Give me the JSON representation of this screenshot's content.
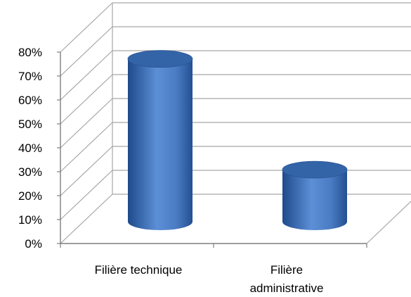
{
  "chart_data": {
    "type": "bar",
    "style": "3d-cylinder",
    "categories": [
      [
        "Filière technique"
      ],
      [
        "Filière",
        "administrative"
      ]
    ],
    "values": [
      72,
      23
    ],
    "ylim": [
      0,
      80
    ],
    "yticks": [
      "0%",
      "10%",
      "20%",
      "30%",
      "40%",
      "50%",
      "60%",
      "70%",
      "80%"
    ],
    "grid": true,
    "colors": {
      "bar_body": "#4a7cc4",
      "bar_dark": "#1f4a8c",
      "bar_top": "#3464a8",
      "grid": "#a6a6a6"
    }
  }
}
